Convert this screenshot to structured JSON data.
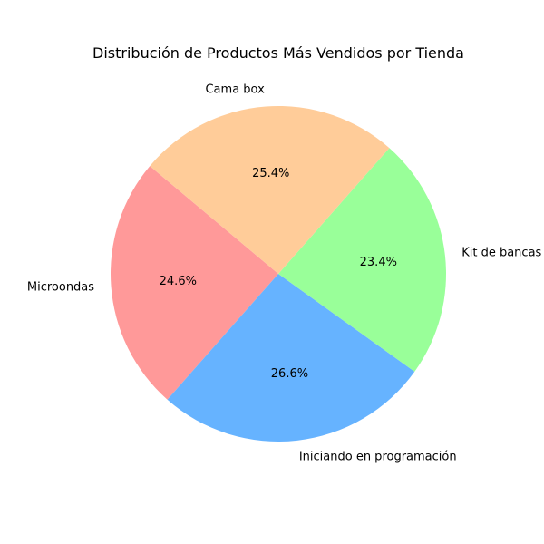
{
  "chart_data": {
    "type": "pie",
    "title": "Distribución de Productos Más Vendidos por Tienda",
    "categories": [
      "Microondas",
      "Iniciando en programación",
      "Kit de bancas",
      "Cama box"
    ],
    "values": [
      24.6,
      26.6,
      23.4,
      25.4
    ],
    "percent_labels": [
      "24.6%",
      "26.6%",
      "23.4%",
      "25.4%"
    ],
    "colors": [
      "#ff9999",
      "#66b3ff",
      "#99ff99",
      "#ffcc99"
    ],
    "start_angle_deg": 140,
    "direction": "counterclockwise",
    "legend": "none"
  }
}
